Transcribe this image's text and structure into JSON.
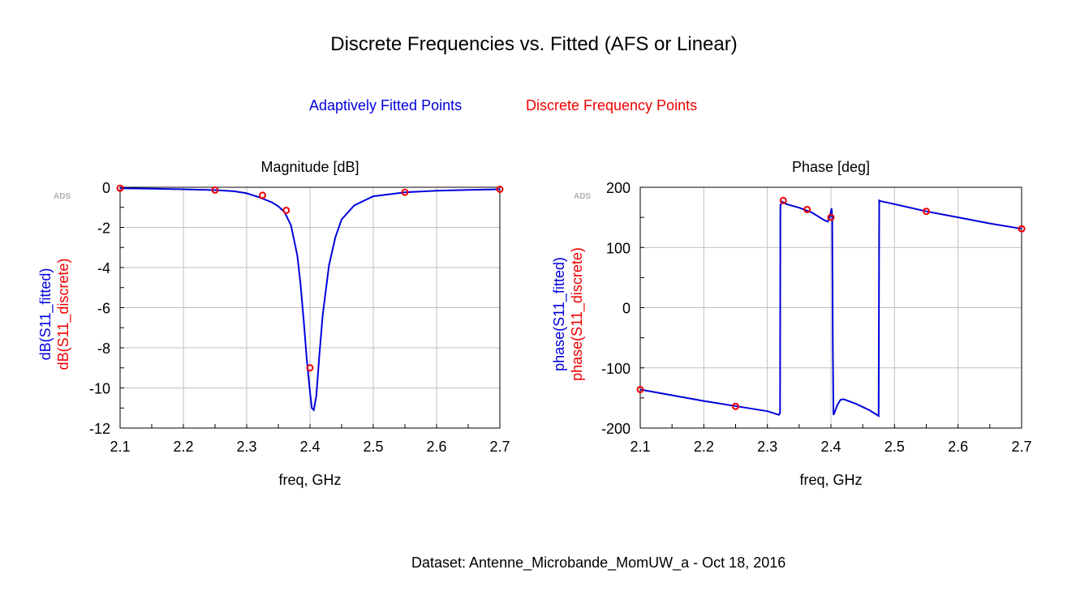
{
  "title": "Discrete Frequencies vs. Fitted (AFS or Linear)",
  "legend": {
    "fitted": "Adaptively Fitted Points",
    "discrete": "Discrete Frequency Points"
  },
  "footer": "Dataset: Antenne_Microbande_MomUW_a - Oct 18, 2016",
  "colors": {
    "fitted": "#0000dd",
    "discrete": "#ee0000",
    "grid": "#c0c0c0"
  },
  "chart_data": [
    {
      "type": "line",
      "title": "Magnitude [dB]",
      "watermark": "ADS",
      "xlabel": "freq, GHz",
      "ylabel_fitted": "dB(S11_fitted)",
      "ylabel_discrete": "dB(S11_discrete)",
      "xlim": [
        2.1,
        2.7
      ],
      "ylim": [
        -12,
        0
      ],
      "xticks": [
        2.1,
        2.2,
        2.3,
        2.4,
        2.5,
        2.6,
        2.7
      ],
      "yticks": [
        0,
        -2,
        -4,
        -6,
        -8,
        -10,
        -12
      ],
      "series": [
        {
          "name": "dB(S11_fitted)",
          "x": [
            2.1,
            2.15,
            2.2,
            2.25,
            2.28,
            2.3,
            2.32,
            2.34,
            2.35,
            2.36,
            2.37,
            2.38,
            2.385,
            2.39,
            2.395,
            2.4,
            2.403,
            2.406,
            2.41,
            2.415,
            2.42,
            2.43,
            2.44,
            2.45,
            2.47,
            2.5,
            2.55,
            2.6,
            2.65,
            2.7
          ],
          "y": [
            -0.05,
            -0.07,
            -0.1,
            -0.14,
            -0.2,
            -0.3,
            -0.5,
            -0.75,
            -0.95,
            -1.25,
            -1.9,
            -3.4,
            -4.8,
            -6.6,
            -8.6,
            -10.2,
            -11.0,
            -11.1,
            -10.4,
            -8.3,
            -6.4,
            -3.9,
            -2.5,
            -1.6,
            -0.9,
            -0.45,
            -0.25,
            -0.17,
            -0.13,
            -0.1
          ]
        },
        {
          "name": "dB(S11_discrete)",
          "x": [
            2.1,
            2.25,
            2.325,
            2.3625,
            2.4,
            2.55,
            2.7
          ],
          "y": [
            -0.05,
            -0.14,
            -0.4,
            -1.15,
            -9.0,
            -0.25,
            -0.1
          ]
        }
      ]
    },
    {
      "type": "line",
      "title": "Phase [deg]",
      "watermark": "ADS",
      "xlabel": "freq, GHz",
      "ylabel_fitted": "phase(S11_fitted)",
      "ylabel_discrete": "phase(S11_discrete)",
      "xlim": [
        2.1,
        2.7
      ],
      "ylim": [
        -200,
        200
      ],
      "xticks": [
        2.1,
        2.2,
        2.3,
        2.4,
        2.5,
        2.6,
        2.7
      ],
      "yticks": [
        200,
        100,
        0,
        -100,
        -200
      ],
      "series": [
        {
          "name": "phase(S11_fitted)",
          "x": [
            2.1,
            2.2,
            2.3,
            2.318,
            2.32,
            2.3205,
            2.323,
            2.33,
            2.35,
            2.37,
            2.39,
            2.395,
            2.398,
            2.4,
            2.401,
            2.402,
            2.403,
            2.404,
            2.405,
            2.41,
            2.415,
            2.42,
            2.44,
            2.46,
            2.475,
            2.476,
            2.478,
            2.5,
            2.55,
            2.6,
            2.65,
            2.7
          ],
          "y": [
            -136,
            -155,
            -172,
            -178,
            -175,
            170,
            176,
            172,
            166,
            158,
            145,
            143,
            150,
            160,
            165,
            150,
            -60,
            -178,
            -176,
            -162,
            -153,
            -152,
            -160,
            -170,
            -180,
            178,
            177,
            172,
            160,
            150,
            140,
            131
          ]
        },
        {
          "name": "phase(S11_discrete)",
          "x": [
            2.1,
            2.25,
            2.325,
            2.3625,
            2.4,
            2.55,
            2.7
          ],
          "y": [
            -136,
            -164,
            178,
            163,
            150,
            160,
            131
          ]
        }
      ]
    }
  ]
}
